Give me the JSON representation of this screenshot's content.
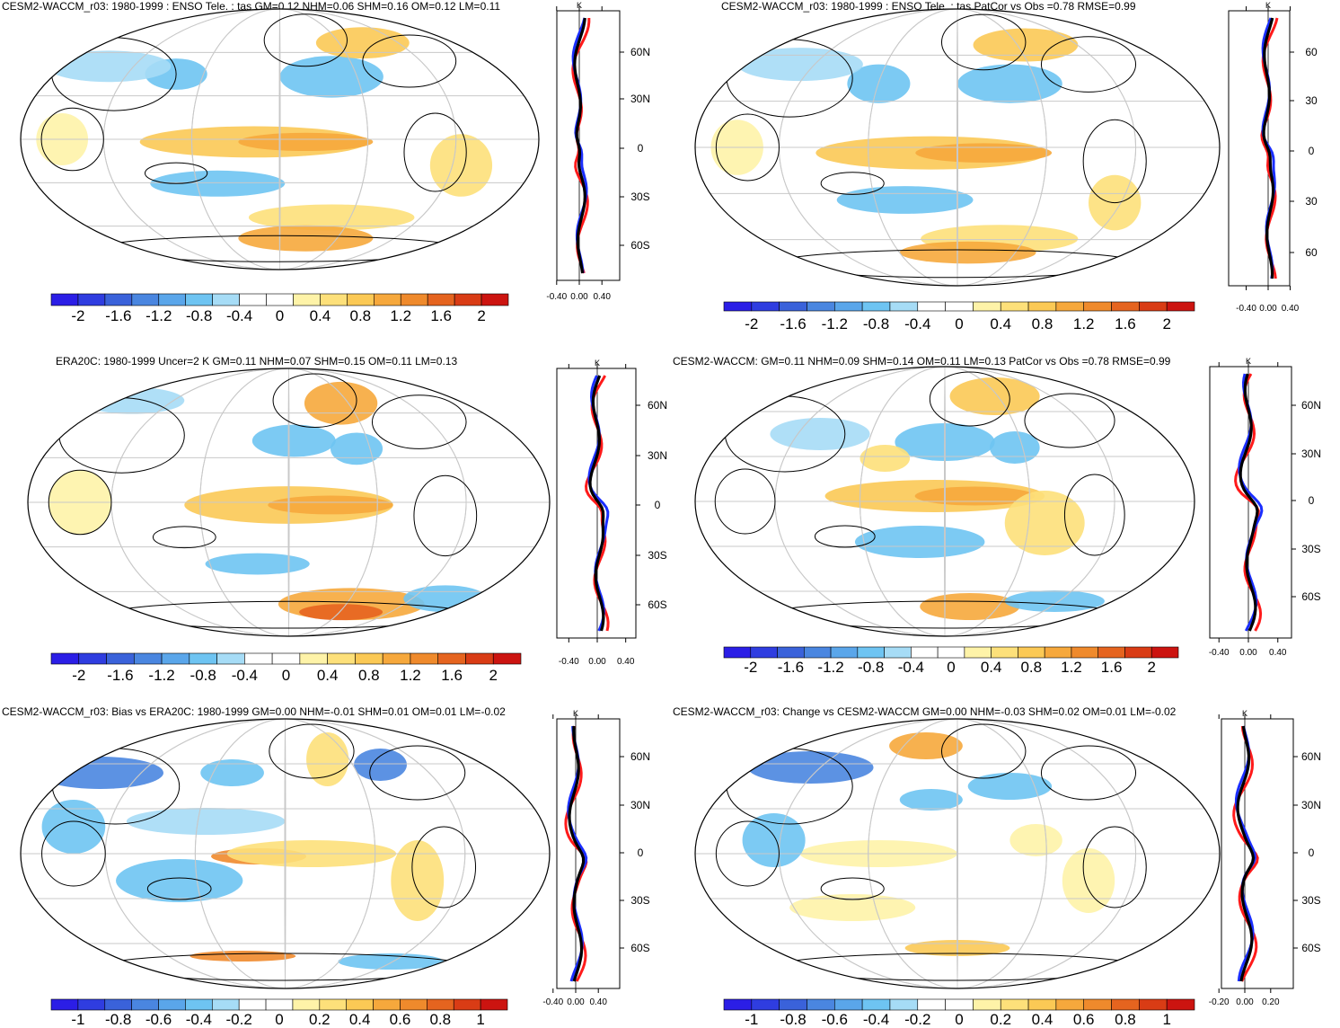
{
  "colors": {
    "scale": [
      "#2b1ee6",
      "#2f3de0",
      "#3a62da",
      "#4a86e0",
      "#5aa6ea",
      "#6ec4f2",
      "#a6dcf6",
      "#ffffff",
      "#ffffff",
      "#fef3a8",
      "#fde07a",
      "#fbc955",
      "#f6a83c",
      "#ef8a2c",
      "#e5641f",
      "#d93c15",
      "#cc1410"
    ],
    "land": "#000000",
    "grid": "#c8c8c8",
    "obs": "#ff1a1a",
    "model": "#1a2eff",
    "mean": "#000000"
  },
  "panels": [
    {
      "title": "CESM2-WACCM_r03: 1980-1999 : ENSO Tele. : tas GM=0.12 NHM=0.06 SHM=0.16 OM=0.12 LM=0.11",
      "colorbar_labels": [
        "-2",
        "-1.6",
        "-1.2",
        "-0.8",
        "-0.4",
        "0",
        "0.4",
        "0.8",
        "1.2",
        "1.6",
        "2"
      ],
      "profile_xticks": [
        "-0.40",
        "0.00",
        "0.40"
      ],
      "profile_unit": "K",
      "profile_lat_labels": [
        "60N",
        "30N",
        "0",
        "30S",
        "60S"
      ]
    },
    {
      "title": "CESM2-WACCM_r03: 1980-1999 : ENSO Tele. : tas PatCor vs Obs =0.78 RMSE=0.99",
      "colorbar_labels": [
        "-2",
        "-1.6",
        "-1.2",
        "-0.8",
        "-0.4",
        "0",
        "0.4",
        "0.8",
        "1.2",
        "1.6",
        "2"
      ],
      "profile_xticks": [
        "-0.40",
        "0.00",
        "0.40"
      ],
      "profile_unit": "K",
      "profile_lat_labels": [
        "60",
        "30",
        "0",
        "30",
        "60"
      ]
    },
    {
      "title": "ERA20C: 1980-1999 Uncer=2 K GM=0.11 NHM=0.07 SHM=0.15 OM=0.11 LM=0.13",
      "colorbar_labels": [
        "-2",
        "-1.6",
        "-1.2",
        "-0.8",
        "-0.4",
        "0",
        "0.4",
        "0.8",
        "1.2",
        "1.6",
        "2"
      ],
      "profile_xticks": [
        "-0.40",
        "0.00",
        "0.40"
      ],
      "profile_unit": "K",
      "profile_lat_labels": [
        "60N",
        "30N",
        "0",
        "30S",
        "60S"
      ]
    },
    {
      "title": "CESM2-WACCM: GM=0.11 NHM=0.09 SHM=0.14 OM=0.11 LM=0.13 PatCor vs Obs =0.78 RMSE=0.99",
      "colorbar_labels": [
        "-2",
        "-1.6",
        "-1.2",
        "-0.8",
        "-0.4",
        "0",
        "0.4",
        "0.8",
        "1.2",
        "1.6",
        "2"
      ],
      "profile_xticks": [
        "-0.40",
        "0.00",
        "0.40"
      ],
      "profile_unit": "K",
      "profile_lat_labels": [
        "60N",
        "30N",
        "0",
        "30S",
        "60S"
      ]
    },
    {
      "title": "CESM2-WACCM_r03: Bias vs ERA20C: 1980-1999 GM=0.00 NHM=-0.01 SHM=0.01 OM=0.01 LM=-0.02",
      "colorbar_labels": [
        "-1",
        "-0.8",
        "-0.6",
        "-0.4",
        "-0.2",
        "0",
        "0.2",
        "0.4",
        "0.6",
        "0.8",
        "1"
      ],
      "profile_xticks": [
        "-0.40",
        "0.00",
        "0.40"
      ],
      "profile_unit": "K",
      "profile_lat_labels": [
        "60N",
        "30N",
        "0",
        "30S",
        "60S"
      ]
    },
    {
      "title": "CESM2-WACCM_r03: Change vs CESM2-WACCM GM=0.00 NHM=-0.03 SHM=0.02 OM=0.01 LM=-0.02",
      "colorbar_labels": [
        "-1",
        "-0.8",
        "-0.6",
        "-0.4",
        "-0.2",
        "0",
        "0.2",
        "0.4",
        "0.6",
        "0.8",
        "1"
      ],
      "profile_xticks": [
        "-0.20",
        "0.00",
        "0.20"
      ],
      "profile_unit": "K",
      "profile_lat_labels": [
        "60N",
        "30N",
        "0",
        "30S",
        "60S"
      ]
    }
  ]
}
